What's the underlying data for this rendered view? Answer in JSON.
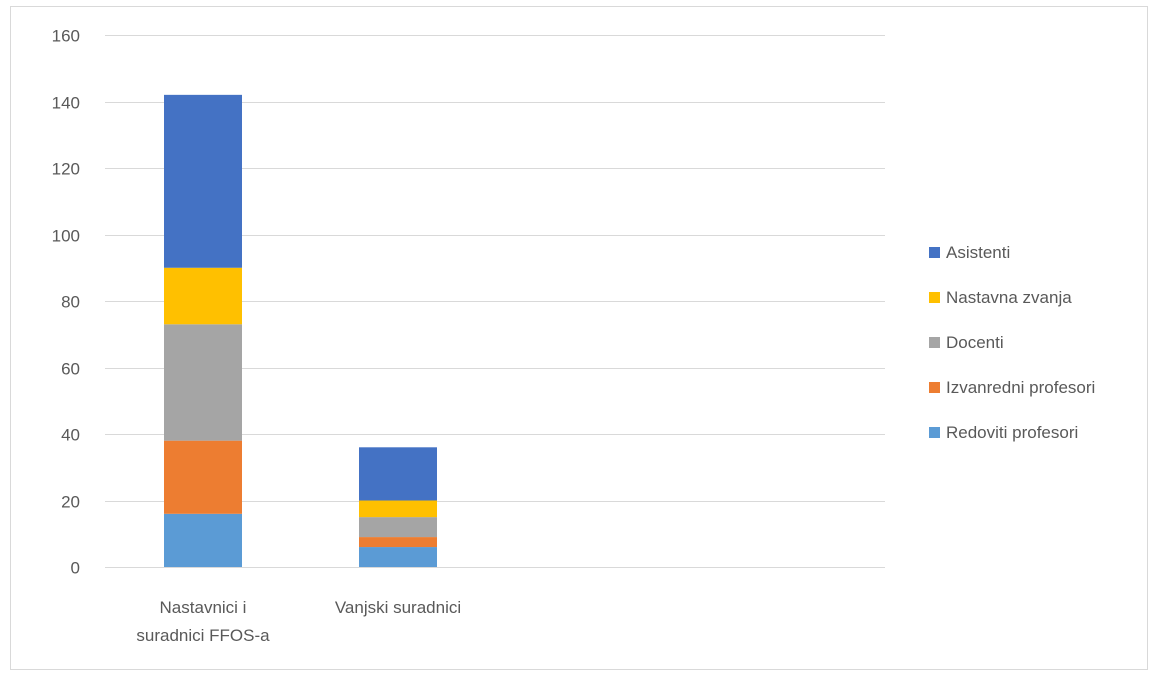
{
  "chart_data": {
    "type": "stacked-bar",
    "title": "",
    "xlabel": "",
    "ylabel": "",
    "ylim": [
      0,
      160
    ],
    "yticks": [
      0,
      20,
      40,
      60,
      80,
      100,
      120,
      140,
      160
    ],
    "grid": true,
    "legend_position": "right",
    "categories": [
      [
        "Nastavnici i",
        "suradnici FFOS-a"
      ],
      [
        "Vanjski suradnici"
      ]
    ],
    "series": [
      {
        "name": "Redoviti profesori",
        "color": "#5b9bd5",
        "values": [
          16,
          6
        ]
      },
      {
        "name": "Izvanredni profesori",
        "color": "#ed7d31",
        "values": [
          22,
          3
        ]
      },
      {
        "name": "Docenti",
        "color": "#a5a5a5",
        "values": [
          35,
          6
        ]
      },
      {
        "name": "Nastavna zvanja",
        "color": "#ffc000",
        "values": [
          17,
          5
        ]
      },
      {
        "name": "Asistenti",
        "color": "#4472c4",
        "values": [
          52,
          16
        ]
      }
    ]
  }
}
